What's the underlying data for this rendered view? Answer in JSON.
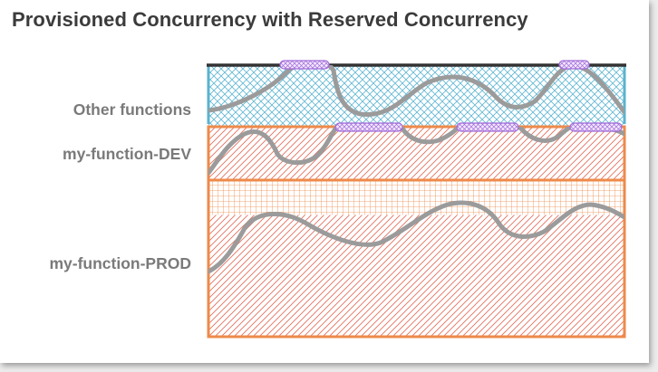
{
  "title": "Provisioned Concurrency with Reserved Concurrency",
  "rows": [
    {
      "label": "Other functions"
    },
    {
      "label": "my-function-DEV"
    },
    {
      "label": "my-function-PROD"
    }
  ],
  "colors": {
    "other_border": "#5bb3cf",
    "function_border": "#ee8a4a",
    "provisioned_marker": "#b27ee8",
    "usage_curve": "#9b9b9b",
    "account_limit_line": "#333333"
  }
}
